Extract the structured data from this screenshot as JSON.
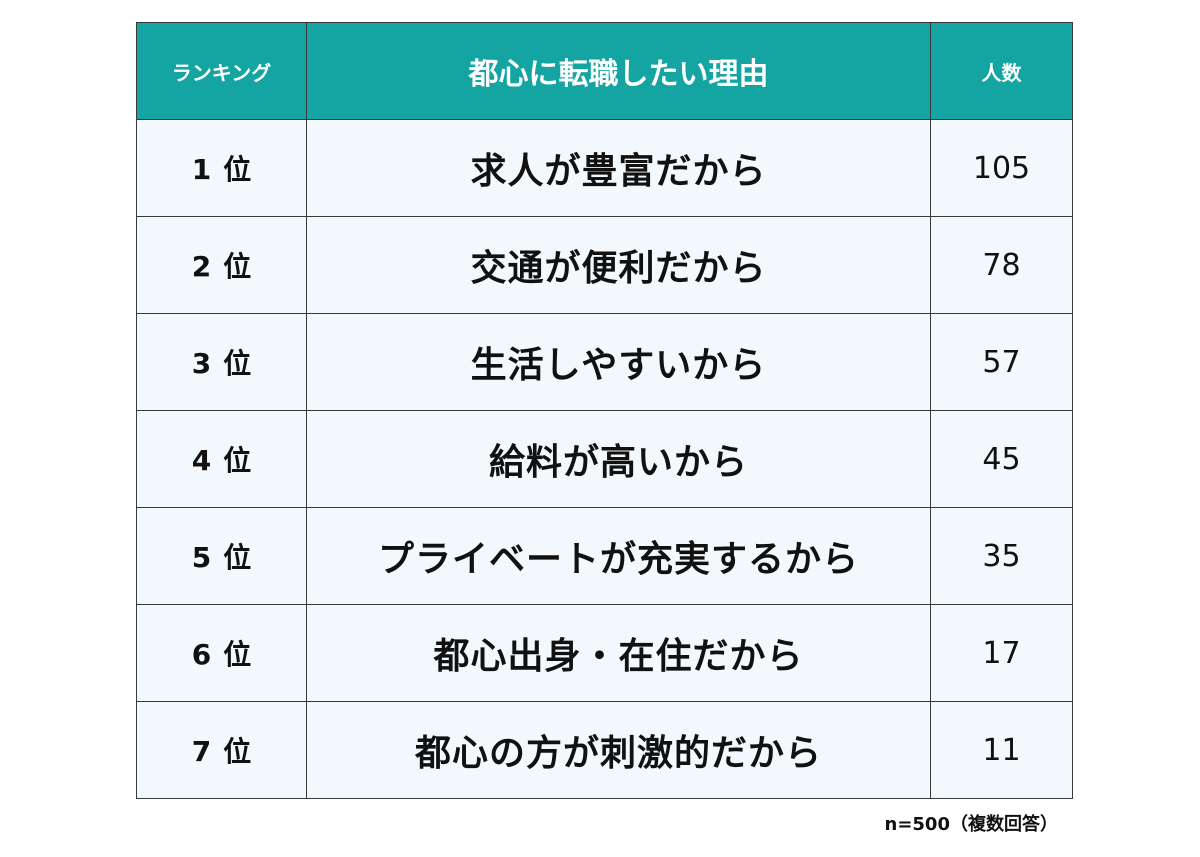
{
  "table": {
    "headers": {
      "rank": "ランキング",
      "reason": "都心に転職したい理由",
      "count": "人数"
    },
    "rank_suffix": "位",
    "rows": [
      {
        "rank": "1",
        "reason": "求人が豊富だから",
        "count": "105"
      },
      {
        "rank": "2",
        "reason": "交通が便利だから",
        "count": "78"
      },
      {
        "rank": "3",
        "reason": "生活しやすいから",
        "count": "57"
      },
      {
        "rank": "4",
        "reason": "給料が高いから",
        "count": "45"
      },
      {
        "rank": "5",
        "reason": "プライベートが充実するから",
        "count": "35"
      },
      {
        "rank": "6",
        "reason": "都心出身・在住だから",
        "count": "17"
      },
      {
        "rank": "7",
        "reason": "都心の方が刺激的だから",
        "count": "11"
      }
    ]
  },
  "note": "n=500（複数回答）",
  "colors": {
    "header_bg": "#14a5a2",
    "header_text": "#ffffff",
    "row_bg": "#f3f8fc",
    "border": "#3a3a3a"
  }
}
